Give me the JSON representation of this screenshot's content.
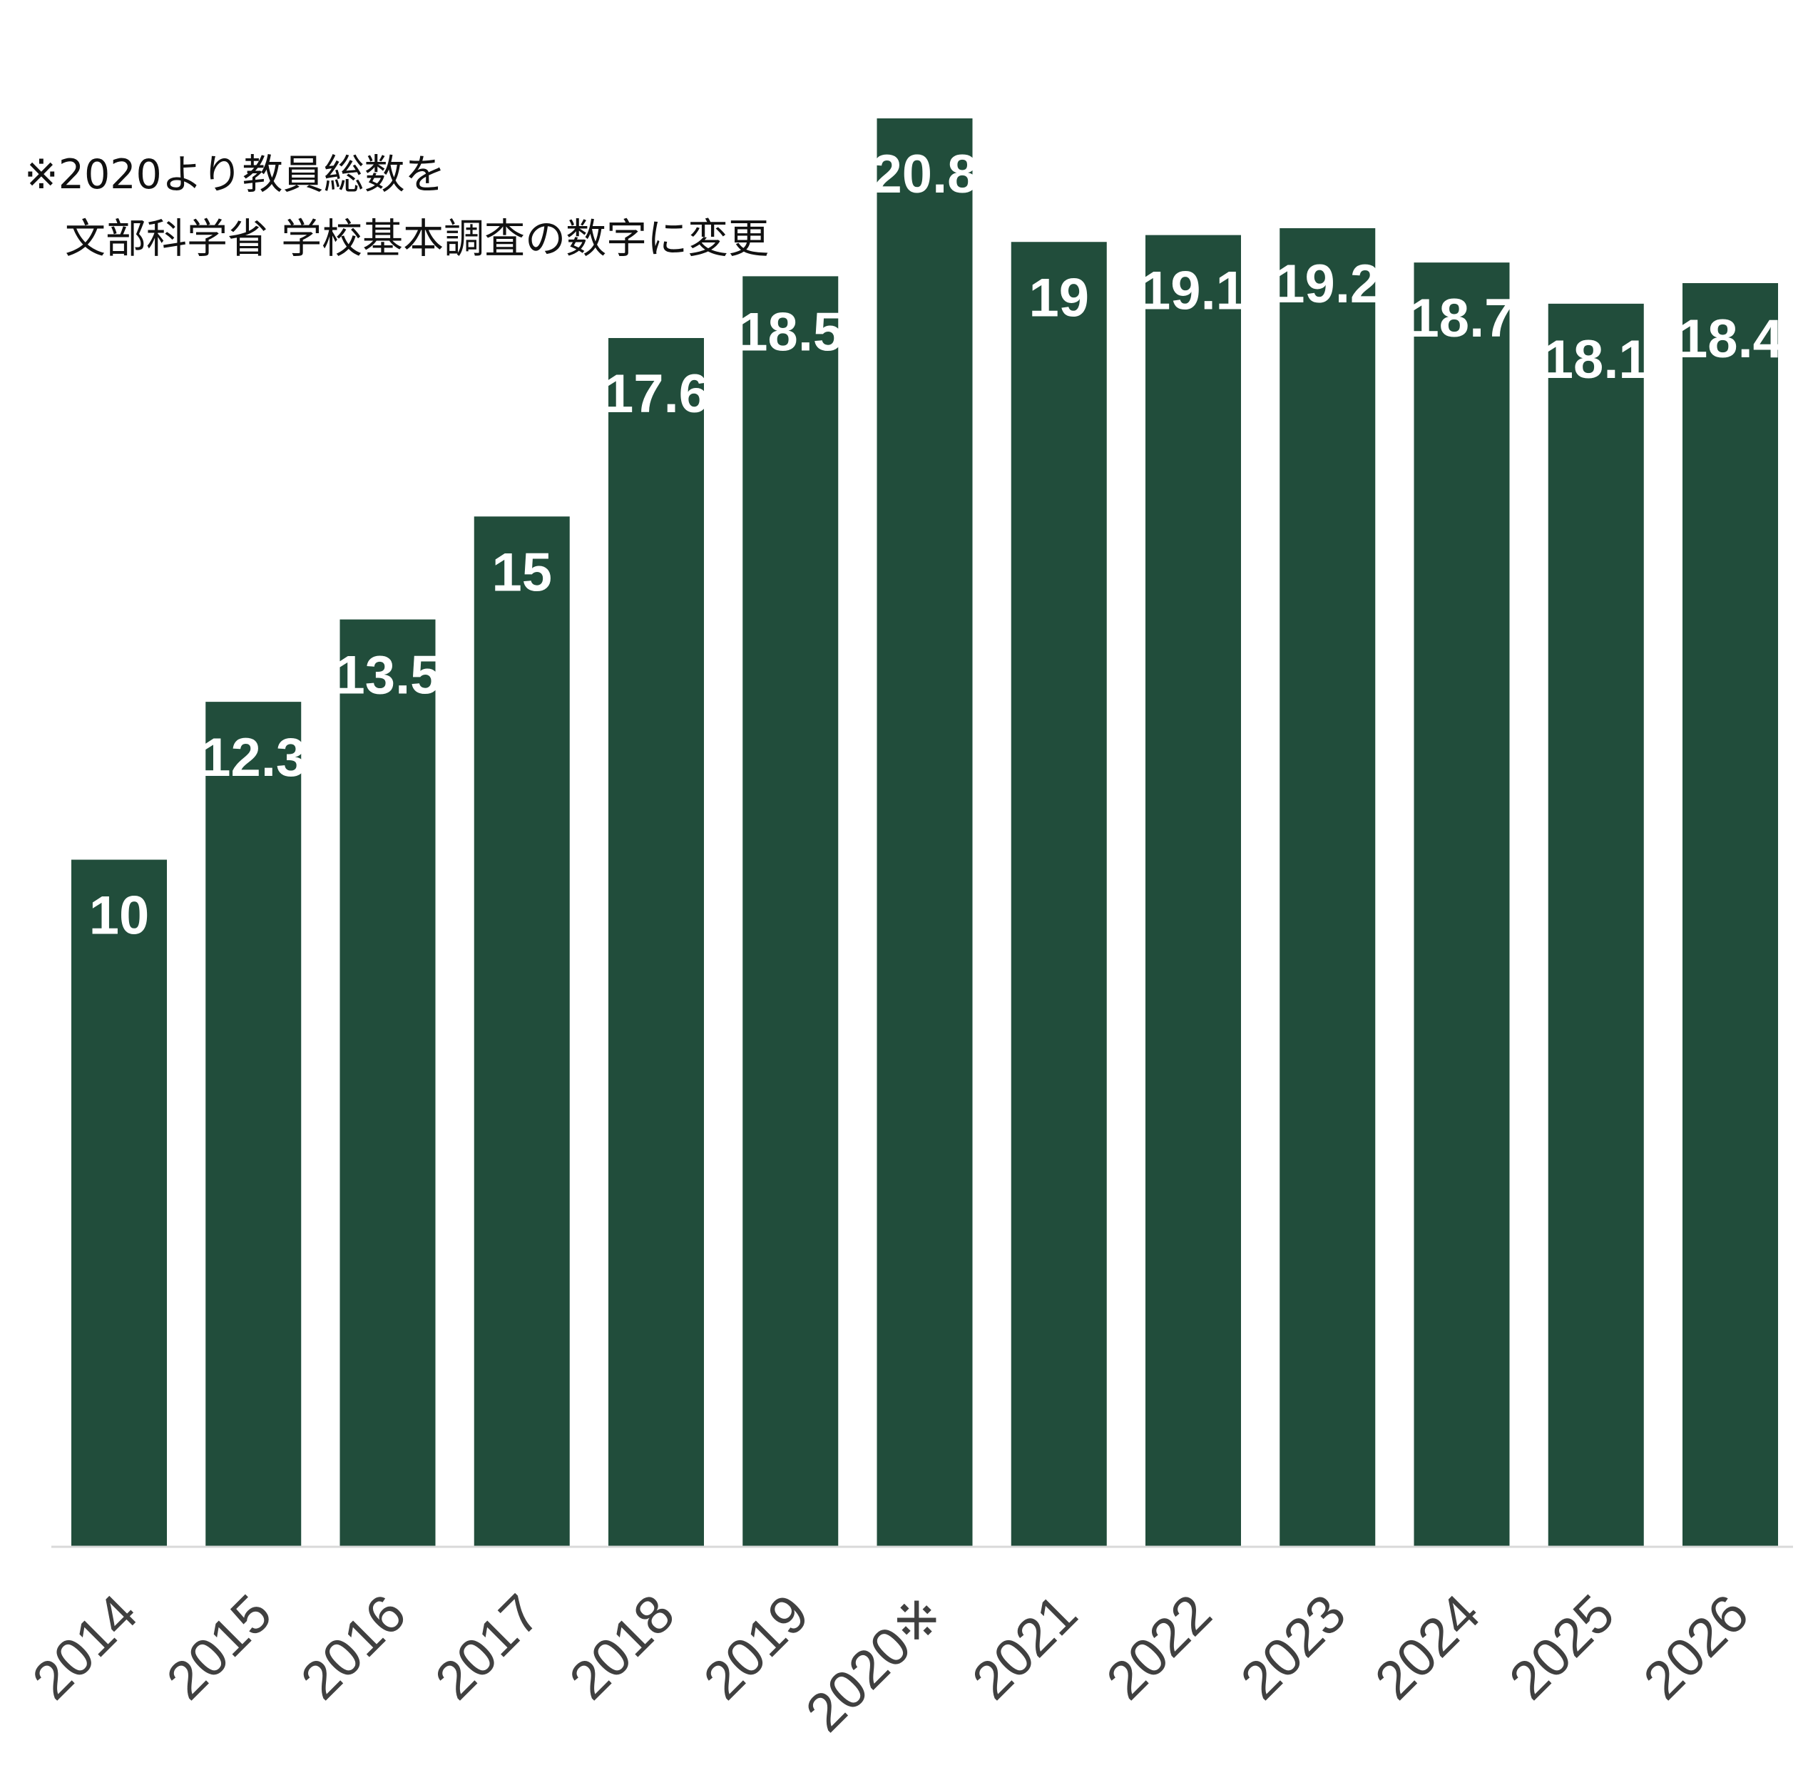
{
  "note": {
    "line1": "※2020より教員総数を",
    "line2": "　文部科学省 学校基本調査の数字に変更"
  },
  "chart_data": {
    "type": "bar",
    "title": "",
    "xlabel": "",
    "ylabel": "",
    "categories": [
      "2014",
      "2015",
      "2016",
      "2017",
      "2018",
      "2019",
      "2020※",
      "2021",
      "2022",
      "2023",
      "2024",
      "2025",
      "2026"
    ],
    "values": [
      10,
      12.3,
      13.5,
      15,
      17.6,
      18.5,
      20.8,
      19,
      19.1,
      19.2,
      18.7,
      18.1,
      18.4
    ],
    "value_labels": [
      "10",
      "12.3",
      "13.5",
      "15",
      "17.6",
      "18.5",
      "20.8",
      "19",
      "19.1",
      "19.2",
      "18.7",
      "18.1",
      "18.4"
    ],
    "ylim": [
      0,
      20.8
    ],
    "grid": false,
    "legend": "none",
    "bar_color": "#214d3b",
    "label_color": "#ffffff",
    "tick_color": "#404040",
    "axis_color": "#d9d9d9"
  }
}
